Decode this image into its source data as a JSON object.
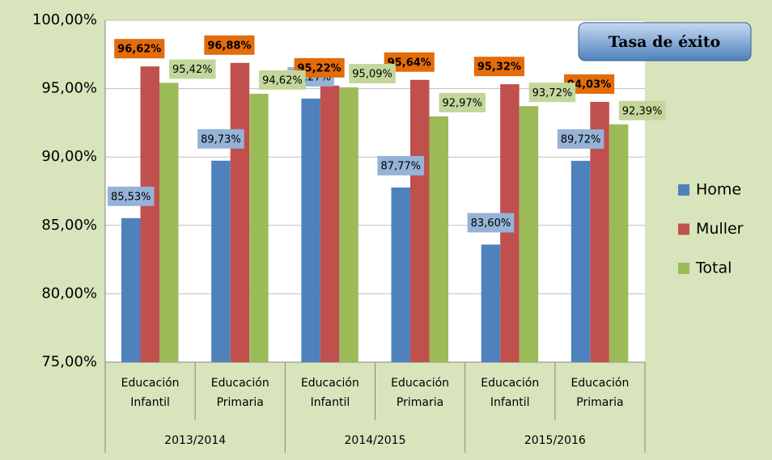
{
  "chart_data": {
    "type": "bar",
    "title": "Tasa de éxito",
    "categories": [
      "Educación Infantil",
      "Educación Primaria",
      "Educación Infantil",
      "Educación Primaria",
      "Educación Infantil",
      "Educación Primaria"
    ],
    "groups": [
      "2013/2014",
      "2014/2015",
      "2015/2016"
    ],
    "series": [
      {
        "name": "Home",
        "color": "#4f81bd",
        "label_color": "#95b3d7",
        "values": [
          85.53,
          89.73,
          94.27,
          87.77,
          83.6,
          89.72
        ],
        "value_labels": [
          "85,53%",
          "89,73%",
          "94,27%",
          "87,77%",
          "83,60%",
          "89,72%"
        ]
      },
      {
        "name": "Muller",
        "color": "#c0504d",
        "label_color": "#e46c0a",
        "values": [
          96.62,
          96.88,
          95.22,
          95.64,
          95.32,
          94.03
        ],
        "value_labels": [
          "96,62%",
          "96,88%",
          "95,22%",
          "95,64%",
          "95,32%",
          "94,03%"
        ]
      },
      {
        "name": "Total",
        "color": "#9bbb59",
        "label_color": "#c3d69b",
        "values": [
          95.42,
          94.62,
          95.09,
          92.97,
          93.72,
          92.39
        ],
        "value_labels": [
          "95,42%",
          "94,62%",
          "95,09%",
          "92,97%",
          "93,72%",
          "92,39%"
        ]
      }
    ],
    "ylim": [
      75,
      100
    ],
    "yticks": [
      {
        "value": 75,
        "label": "75,00%"
      },
      {
        "value": 80,
        "label": "80,00%"
      },
      {
        "value": 85,
        "label": "85,00%"
      },
      {
        "value": 90,
        "label": "90,00%"
      },
      {
        "value": 95,
        "label": "95,00%"
      },
      {
        "value": 100,
        "label": "100,00%"
      }
    ],
    "grid": true,
    "legend": "right"
  }
}
